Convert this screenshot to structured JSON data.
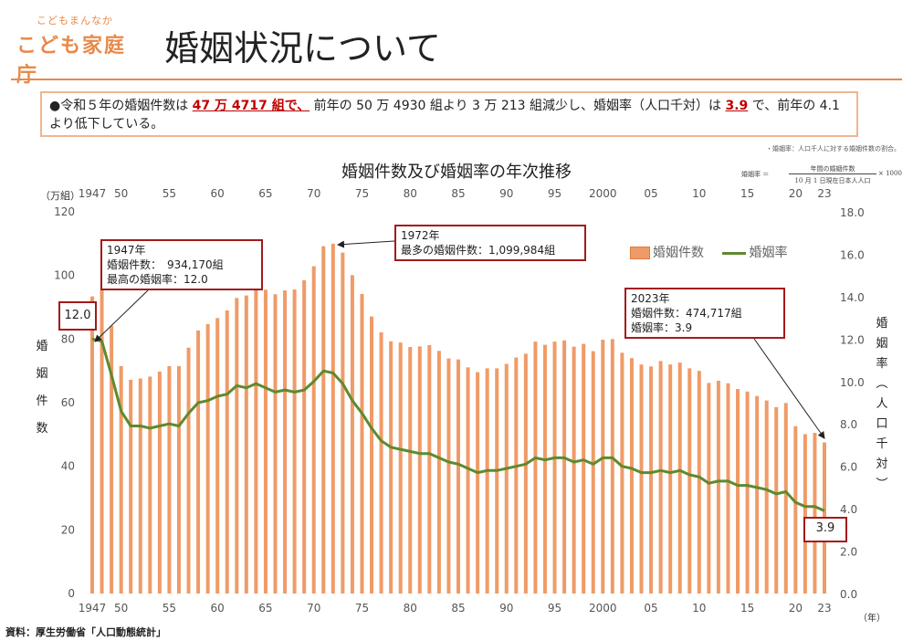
{
  "logo": {
    "top": "こどもまんなか",
    "main": "こども家庭庁"
  },
  "page_title": "婚姻状況について",
  "summary": {
    "bullet": "●",
    "p1": "令和５年の婚姻件数は",
    "h1": "47 万 4717 組で、",
    "p2": "前年の 50 万 4930 組より 3 万 213 組減少し、婚姻率（人口千対）は",
    "h2": "3.9",
    "p3": "で、前年の 4.1 より低下している。"
  },
  "note": "・婚姻率：人口千人に対する婚姻件数の割合。",
  "formula": {
    "lhs": "婚姻率 ＝",
    "numerator": "年間の婚姻件数",
    "denominator": "10 月 1 日現在日本人人口",
    "tail": "× 1000"
  },
  "source": "資料：厚生労働省「人口動態統計」",
  "callouts": {
    "c1947": "1947年\n婚姻件数：　934,170組\n最高の婚姻率：12.0",
    "c1972": "1972年\n最多の婚姻件数：1,099,984組",
    "c2023": "2023年\n婚姻件数：474,717組\n婚姻率：3.9",
    "v1947": "12.0",
    "v2023": "3.9"
  },
  "chart_data": {
    "type": "bar",
    "title": "婚姻件数及び婚姻率の年次推移",
    "left_unit": "（万組）",
    "left_label": "婚姻件数",
    "right_label": "婚姻率（人口千対）",
    "x_unit": "（年）",
    "ylim_left": [
      0,
      120
    ],
    "ylim_right": [
      0.0,
      18.0
    ],
    "left_ticks": [
      0,
      20,
      40,
      60,
      80,
      100,
      120
    ],
    "right_ticks": [
      "0.0",
      "2.0",
      "4.0",
      "6.0",
      "8.0",
      "10.0",
      "12.0",
      "14.0",
      "16.0",
      "18.0"
    ],
    "x_tick_labels": [
      {
        "year": 1947,
        "label": "1947"
      },
      {
        "year": 1950,
        "label": "50"
      },
      {
        "year": 1955,
        "label": "55"
      },
      {
        "year": 1960,
        "label": "60"
      },
      {
        "year": 1965,
        "label": "65"
      },
      {
        "year": 1970,
        "label": "70"
      },
      {
        "year": 1975,
        "label": "75"
      },
      {
        "year": 1980,
        "label": "80"
      },
      {
        "year": 1985,
        "label": "85"
      },
      {
        "year": 1990,
        "label": "90"
      },
      {
        "year": 1995,
        "label": "95"
      },
      {
        "year": 2000,
        "label": "2000"
      },
      {
        "year": 2005,
        "label": "05"
      },
      {
        "year": 2010,
        "label": "10"
      },
      {
        "year": 2015,
        "label": "15"
      },
      {
        "year": 2020,
        "label": "20"
      },
      {
        "year": 2023,
        "label": "23"
      }
    ],
    "x": [
      1947,
      1948,
      1949,
      1950,
      1951,
      1952,
      1953,
      1954,
      1955,
      1956,
      1957,
      1958,
      1959,
      1960,
      1961,
      1962,
      1963,
      1964,
      1965,
      1966,
      1967,
      1968,
      1969,
      1970,
      1971,
      1972,
      1973,
      1974,
      1975,
      1976,
      1977,
      1978,
      1979,
      1980,
      1981,
      1982,
      1983,
      1984,
      1985,
      1986,
      1987,
      1988,
      1989,
      1990,
      1991,
      1992,
      1993,
      1994,
      1995,
      1996,
      1997,
      1998,
      1999,
      2000,
      2001,
      2002,
      2003,
      2004,
      2005,
      2006,
      2007,
      2008,
      2009,
      2010,
      2011,
      2012,
      2013,
      2014,
      2015,
      2016,
      2017,
      2018,
      2019,
      2020,
      2021,
      2022,
      2023
    ],
    "series": [
      {
        "name": "婚姻件数",
        "axis": "left",
        "color": "#ef9b67",
        "values": [
          93.4,
          95.4,
          84.2,
          71.5,
          67.2,
          67.6,
          68.2,
          69.8,
          71.5,
          71.5,
          77.3,
          82.7,
          84.7,
          86.6,
          89.0,
          92.9,
          93.7,
          96.4,
          95.5,
          94.1,
          95.3,
          95.6,
          98.5,
          102.9,
          109.2,
          110.0,
          107.2,
          100.1,
          94.2,
          87.1,
          82.1,
          79.3,
          78.9,
          77.5,
          77.7,
          78.1,
          76.3,
          73.9,
          73.6,
          71.1,
          69.6,
          70.8,
          70.8,
          72.2,
          74.2,
          75.4,
          79.2,
          78.2,
          79.2,
          79.6,
          77.6,
          78.5,
          76.2,
          79.8,
          80.0,
          75.7,
          74.0,
          72.0,
          71.4,
          73.1,
          72.0,
          72.6,
          70.8,
          70.0,
          66.2,
          66.9,
          66.1,
          64.3,
          63.5,
          62.1,
          60.7,
          58.6,
          59.9,
          52.6,
          50.1,
          50.5,
          47.5
        ]
      },
      {
        "name": "婚姻率",
        "axis": "right",
        "color": "#5e8a2e",
        "values": [
          12.0,
          11.9,
          10.3,
          8.6,
          7.9,
          7.9,
          7.8,
          7.9,
          8.0,
          7.9,
          8.5,
          9.0,
          9.1,
          9.3,
          9.4,
          9.8,
          9.7,
          9.9,
          9.7,
          9.5,
          9.6,
          9.5,
          9.6,
          10.0,
          10.5,
          10.4,
          9.9,
          9.1,
          8.5,
          7.8,
          7.2,
          6.9,
          6.8,
          6.7,
          6.6,
          6.6,
          6.4,
          6.2,
          6.1,
          5.9,
          5.7,
          5.8,
          5.8,
          5.9,
          6.0,
          6.1,
          6.4,
          6.3,
          6.4,
          6.4,
          6.2,
          6.3,
          6.1,
          6.4,
          6.4,
          6.0,
          5.9,
          5.7,
          5.7,
          5.8,
          5.7,
          5.8,
          5.6,
          5.5,
          5.2,
          5.3,
          5.3,
          5.1,
          5.1,
          5.0,
          4.9,
          4.7,
          4.8,
          4.3,
          4.1,
          4.1,
          3.9
        ]
      }
    ],
    "legend_position": "top-right",
    "grid": false
  }
}
